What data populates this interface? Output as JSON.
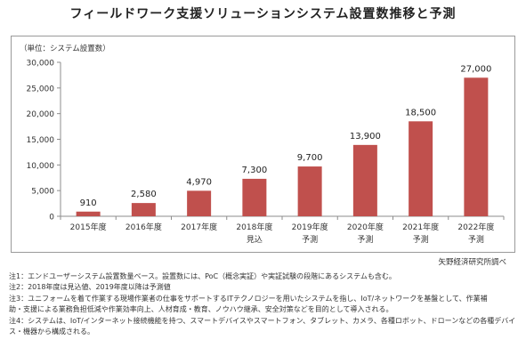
{
  "page": {
    "title": "フィールドワーク支援ソリューションシステム設置数推移と予測",
    "unit_label": "（単位：システム設置数）",
    "source": "矢野経済研究所調べ"
  },
  "chart_data": {
    "type": "bar",
    "title": "フィールドワーク支援ソリューションシステム設置数推移と予測",
    "ylabel": "（単位：システム設置数）",
    "xlabel": "",
    "ylim": [
      0,
      30000
    ],
    "y_ticks": [
      "0",
      "5,000",
      "10,000",
      "15,000",
      "20,000",
      "25,000",
      "30,000"
    ],
    "categories": [
      "2015年度",
      "2016年度",
      "2017年度",
      "2018年度",
      "2019年度",
      "2020年度",
      "2021年度",
      "2022年度"
    ],
    "sublabels": [
      "",
      "",
      "",
      "見込",
      "予測",
      "予測",
      "予測",
      "予測"
    ],
    "values": [
      910,
      2580,
      4970,
      7300,
      9700,
      13900,
      18500,
      27000
    ],
    "data_labels": [
      "910",
      "2,580",
      "4,970",
      "7,300",
      "9,700",
      "13,900",
      "18,500",
      "27,000"
    ],
    "bar_color": "#c0504d",
    "grid": false
  },
  "notes": [
    "注1：エンドユーザーシステム設置数量ベース。設置数には、PoC（概念実証）や実証試験の段階にあるシステムも含む。",
    "注2：2018年度は見込値、2019年度以降は予測値",
    "注3：ユニフォームを着て作業する現場作業者の仕事をサポートするITテクノロジーを用いたシステムを指し、IoT/ネットワークを基盤として、作業補",
    "助・支援による業務負担低減や作業効率向上、人材育成・教育、ノウハウ継承、安全対策などを目的として導入される。",
    "注4：システムは、IoT/インターネット接続機能を持つ、スマートデバイスやスマートフォン、タブレット、カメラ、各種ロボット、ドローンなどの各種デバイ",
    "ス・機器から構成される。"
  ]
}
